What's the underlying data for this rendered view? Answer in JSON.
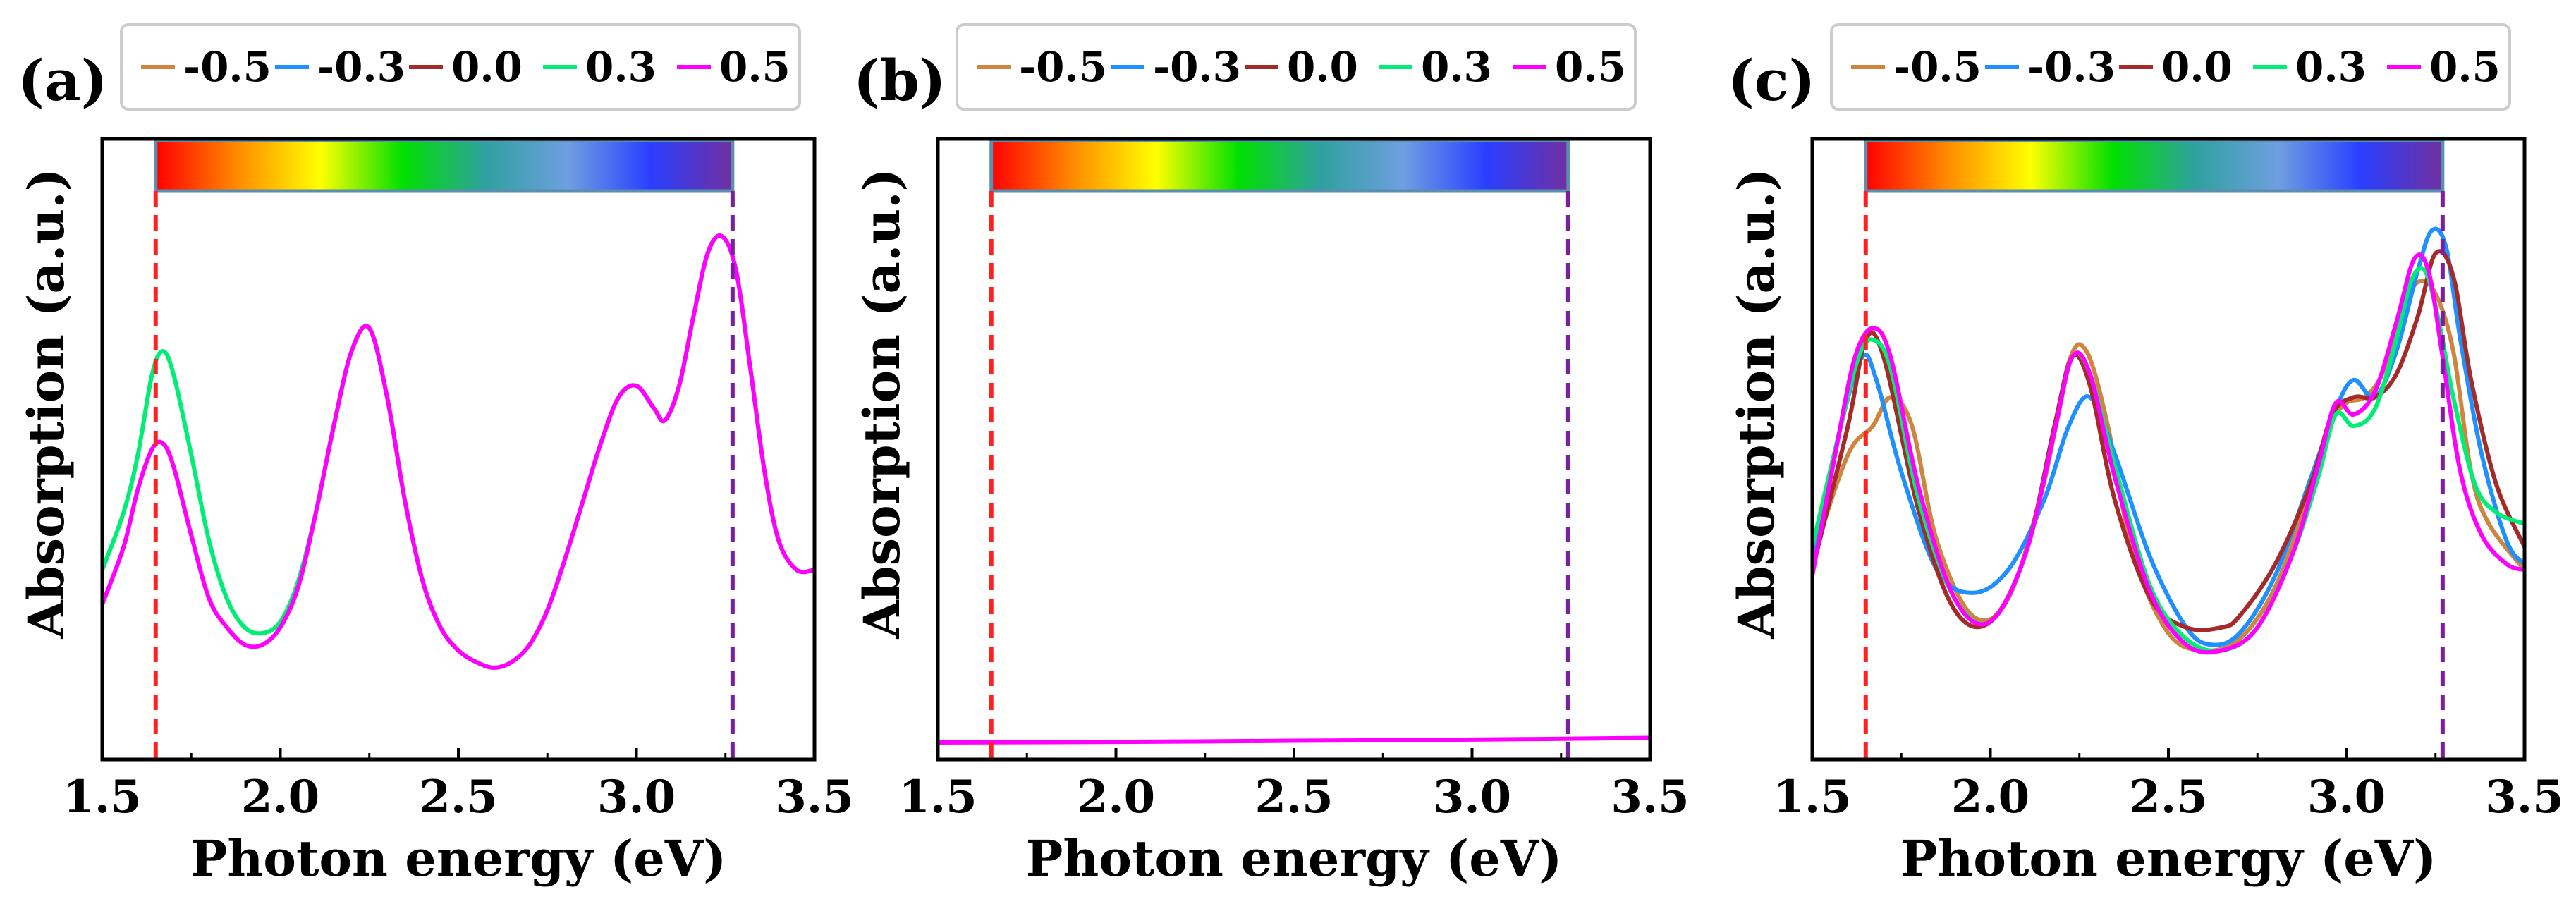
{
  "colors": {
    "-0.5": "#cd853f",
    "-0.3": "#1e90ff",
    "0.0": "#a52a2a",
    "0.3": "#00ee76",
    "0.5": "#ff00ff",
    "visible_start_line": "#ff2020",
    "visible_end_line": "#7b1fa2",
    "legend_border": "#cccccc",
    "colorbar_border": "#5a8fb0"
  },
  "legend": [
    {
      "key": "-0.5",
      "label": "-0.5"
    },
    {
      "key": "-0.3",
      "label": "-0.3"
    },
    {
      "key": "0.0",
      "label": "0.0"
    },
    {
      "key": "0.3",
      "label": "0.3"
    },
    {
      "key": "0.5",
      "label": "0.5"
    }
  ],
  "colorbar": {
    "stops": [
      "#ff0000",
      "#ff8c00",
      "#ffff00",
      "#00e000",
      "#2fa0a0",
      "#6f9fe0",
      "#2a3fff",
      "#7030a0"
    ],
    "x_start": 1.65,
    "x_end": 3.27
  },
  "chart_data": [
    {
      "type": "line",
      "panel_label": "(a)",
      "xlabel": "Photon energy (eV)",
      "ylabel": "Absorption (a.u.)",
      "xlim": [
        1.5,
        3.5
      ],
      "ylim": [
        0,
        1
      ],
      "xticks": [
        "1.5",
        "2.0",
        "2.5",
        "3.0",
        "3.5"
      ],
      "vlines": [
        1.65,
        3.27
      ],
      "series": [
        {
          "name": "0.3",
          "x": [
            1.5,
            1.56,
            1.6,
            1.64,
            1.67,
            1.7,
            1.75,
            1.8,
            1.85,
            1.9,
            1.95,
            2.0,
            2.05,
            2.1,
            2.15,
            2.2,
            2.25,
            2.3,
            2.35,
            2.4,
            2.45,
            2.5,
            2.55,
            2.6,
            2.65,
            2.7,
            2.75,
            2.8,
            2.85,
            2.9,
            2.95,
            3.0,
            3.05,
            3.08,
            3.12,
            3.16,
            3.2,
            3.24,
            3.28,
            3.32,
            3.36,
            3.4,
            3.45,
            3.5
          ],
          "y": [
            0.3,
            0.4,
            0.5,
            0.64,
            0.68,
            0.64,
            0.5,
            0.35,
            0.25,
            0.2,
            0.19,
            0.21,
            0.28,
            0.4,
            0.55,
            0.68,
            0.72,
            0.6,
            0.42,
            0.28,
            0.2,
            0.16,
            0.14,
            0.13,
            0.14,
            0.17,
            0.23,
            0.32,
            0.42,
            0.52,
            0.6,
            0.62,
            0.58,
            0.56,
            0.62,
            0.74,
            0.85,
            0.88,
            0.82,
            0.65,
            0.47,
            0.35,
            0.3,
            0.3
          ]
        },
        {
          "name": "0.5",
          "x": [
            1.5,
            1.56,
            1.6,
            1.64,
            1.67,
            1.7,
            1.75,
            1.8,
            1.85,
            1.9,
            1.95,
            2.0,
            2.05,
            2.1,
            2.15,
            2.2,
            2.25,
            2.3,
            2.35,
            2.4,
            2.45,
            2.5,
            2.55,
            2.6,
            2.65,
            2.7,
            2.75,
            2.8,
            2.85,
            2.9,
            2.95,
            3.0,
            3.05,
            3.08,
            3.12,
            3.16,
            3.2,
            3.24,
            3.28,
            3.32,
            3.36,
            3.4,
            3.45,
            3.5
          ],
          "y": [
            0.24,
            0.34,
            0.44,
            0.51,
            0.52,
            0.48,
            0.36,
            0.25,
            0.2,
            0.17,
            0.17,
            0.2,
            0.27,
            0.4,
            0.55,
            0.68,
            0.72,
            0.6,
            0.42,
            0.28,
            0.2,
            0.16,
            0.14,
            0.13,
            0.14,
            0.17,
            0.23,
            0.32,
            0.42,
            0.52,
            0.6,
            0.62,
            0.58,
            0.56,
            0.62,
            0.74,
            0.85,
            0.88,
            0.82,
            0.65,
            0.47,
            0.35,
            0.3,
            0.3
          ]
        }
      ]
    },
    {
      "type": "line",
      "panel_label": "(b)",
      "xlabel": "Photon energy (eV)",
      "ylabel": "Absorption (a.u.)",
      "xlim": [
        1.5,
        3.5
      ],
      "ylim": [
        0,
        1
      ],
      "xticks": [
        "1.5",
        "2.0",
        "2.5",
        "3.0",
        "3.5"
      ],
      "vlines": [
        1.65,
        3.27
      ],
      "series": [
        {
          "name": "0.5",
          "x": [
            1.5,
            2.0,
            2.5,
            3.0,
            3.5
          ],
          "y": [
            0.0,
            0.001,
            0.003,
            0.005,
            0.008
          ]
        }
      ]
    },
    {
      "type": "line",
      "panel_label": "(c)",
      "xlabel": "Photon energy (eV)",
      "ylabel": "Absorption (a.u.)",
      "xlim": [
        1.5,
        3.5
      ],
      "ylim": [
        0,
        1
      ],
      "xticks": [
        "1.5",
        "2.0",
        "2.5",
        "3.0",
        "3.5"
      ],
      "vlines": [
        1.65,
        3.27
      ],
      "series": [
        {
          "name": "-0.5",
          "x": [
            1.5,
            1.6,
            1.67,
            1.72,
            1.78,
            1.85,
            1.95,
            2.05,
            2.15,
            2.22,
            2.27,
            2.33,
            2.4,
            2.5,
            2.6,
            2.7,
            2.8,
            2.9,
            2.95,
            3.0,
            3.05,
            3.1,
            3.15,
            3.2,
            3.25,
            3.3,
            3.35,
            3.4,
            3.5
          ],
          "y": [
            0.32,
            0.5,
            0.55,
            0.6,
            0.55,
            0.35,
            0.22,
            0.25,
            0.45,
            0.66,
            0.68,
            0.55,
            0.33,
            0.19,
            0.16,
            0.18,
            0.27,
            0.44,
            0.55,
            0.59,
            0.6,
            0.64,
            0.74,
            0.8,
            0.78,
            0.68,
            0.47,
            0.38,
            0.3
          ]
        },
        {
          "name": "-0.3",
          "x": [
            1.5,
            1.58,
            1.64,
            1.68,
            1.75,
            1.85,
            1.95,
            2.05,
            2.15,
            2.22,
            2.28,
            2.35,
            2.45,
            2.55,
            2.62,
            2.7,
            2.8,
            2.9,
            2.97,
            3.02,
            3.08,
            3.14,
            3.2,
            3.24,
            3.28,
            3.32,
            3.38,
            3.45,
            3.5
          ],
          "y": [
            0.32,
            0.55,
            0.67,
            0.63,
            0.47,
            0.3,
            0.26,
            0.3,
            0.42,
            0.55,
            0.6,
            0.5,
            0.32,
            0.2,
            0.17,
            0.19,
            0.29,
            0.46,
            0.58,
            0.63,
            0.6,
            0.68,
            0.82,
            0.89,
            0.86,
            0.7,
            0.5,
            0.35,
            0.31
          ]
        },
        {
          "name": "0.0",
          "x": [
            1.5,
            1.6,
            1.65,
            1.7,
            1.8,
            1.9,
            2.0,
            2.1,
            2.18,
            2.23,
            2.28,
            2.35,
            2.45,
            2.55,
            2.65,
            2.7,
            2.8,
            2.9,
            2.96,
            3.02,
            3.08,
            3.14,
            3.2,
            3.25,
            3.3,
            3.35,
            3.42,
            3.5
          ],
          "y": [
            0.3,
            0.55,
            0.7,
            0.67,
            0.4,
            0.23,
            0.21,
            0.33,
            0.55,
            0.67,
            0.62,
            0.42,
            0.25,
            0.2,
            0.2,
            0.22,
            0.31,
            0.45,
            0.57,
            0.6,
            0.6,
            0.64,
            0.74,
            0.85,
            0.81,
            0.63,
            0.45,
            0.34
          ]
        },
        {
          "name": "0.3",
          "x": [
            1.5,
            1.58,
            1.63,
            1.67,
            1.72,
            1.8,
            1.9,
            2.0,
            2.1,
            2.18,
            2.23,
            2.28,
            2.35,
            2.45,
            2.55,
            2.65,
            2.75,
            2.85,
            2.92,
            2.97,
            3.02,
            3.08,
            3.14,
            3.18,
            3.22,
            3.26,
            3.3,
            3.36,
            3.42,
            3.5
          ],
          "y": [
            0.34,
            0.55,
            0.67,
            0.7,
            0.65,
            0.42,
            0.25,
            0.21,
            0.33,
            0.54,
            0.67,
            0.64,
            0.48,
            0.27,
            0.18,
            0.16,
            0.2,
            0.33,
            0.46,
            0.57,
            0.55,
            0.58,
            0.7,
            0.8,
            0.82,
            0.73,
            0.6,
            0.45,
            0.4,
            0.38
          ]
        },
        {
          "name": "0.5",
          "x": [
            1.5,
            1.57,
            1.62,
            1.67,
            1.72,
            1.8,
            1.9,
            2.0,
            2.1,
            2.18,
            2.23,
            2.28,
            2.35,
            2.45,
            2.55,
            2.65,
            2.75,
            2.85,
            2.92,
            2.97,
            3.02,
            3.08,
            3.14,
            3.19,
            3.23,
            3.27,
            3.32,
            3.38,
            3.45,
            3.5
          ],
          "y": [
            0.29,
            0.52,
            0.67,
            0.72,
            0.67,
            0.44,
            0.25,
            0.21,
            0.33,
            0.54,
            0.67,
            0.64,
            0.46,
            0.26,
            0.17,
            0.16,
            0.2,
            0.33,
            0.48,
            0.59,
            0.57,
            0.61,
            0.73,
            0.84,
            0.82,
            0.67,
            0.47,
            0.36,
            0.31,
            0.3
          ]
        }
      ]
    }
  ]
}
